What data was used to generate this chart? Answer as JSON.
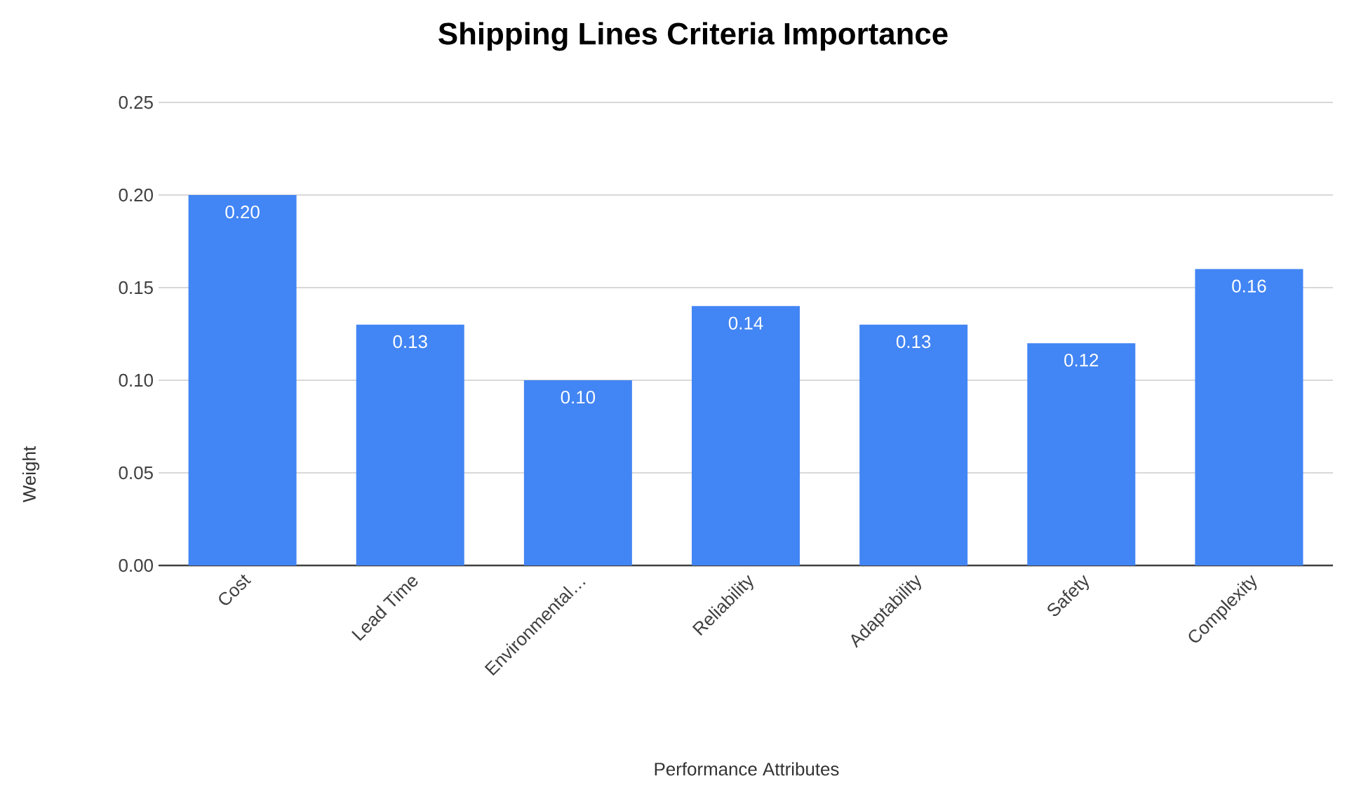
{
  "chart_data": {
    "type": "bar",
    "title": "Shipping Lines Criteria Importance",
    "xlabel": "Performance Attributes",
    "ylabel": "Weight",
    "categories": [
      "Cost",
      "Lead Time",
      "Environmental…",
      "Reliability",
      "Adaptability",
      "Safety",
      "Complexity"
    ],
    "values": [
      0.2,
      0.13,
      0.1,
      0.14,
      0.13,
      0.12,
      0.16
    ],
    "value_labels": [
      "0.20",
      "0.13",
      "0.10",
      "0.14",
      "0.13",
      "0.12",
      "0.16"
    ],
    "color": "#4285f4",
    "ylim": [
      0,
      0.25
    ],
    "yticks": [
      {
        "value": 0,
        "label": "0.00"
      },
      {
        "value": 0.05,
        "label": "0.05"
      },
      {
        "value": 0.1,
        "label": "0.10"
      },
      {
        "value": 0.15,
        "label": "0.15"
      },
      {
        "value": 0.2,
        "label": "0.20"
      },
      {
        "value": 0.25,
        "label": "0.25"
      }
    ],
    "grid": "y"
  }
}
